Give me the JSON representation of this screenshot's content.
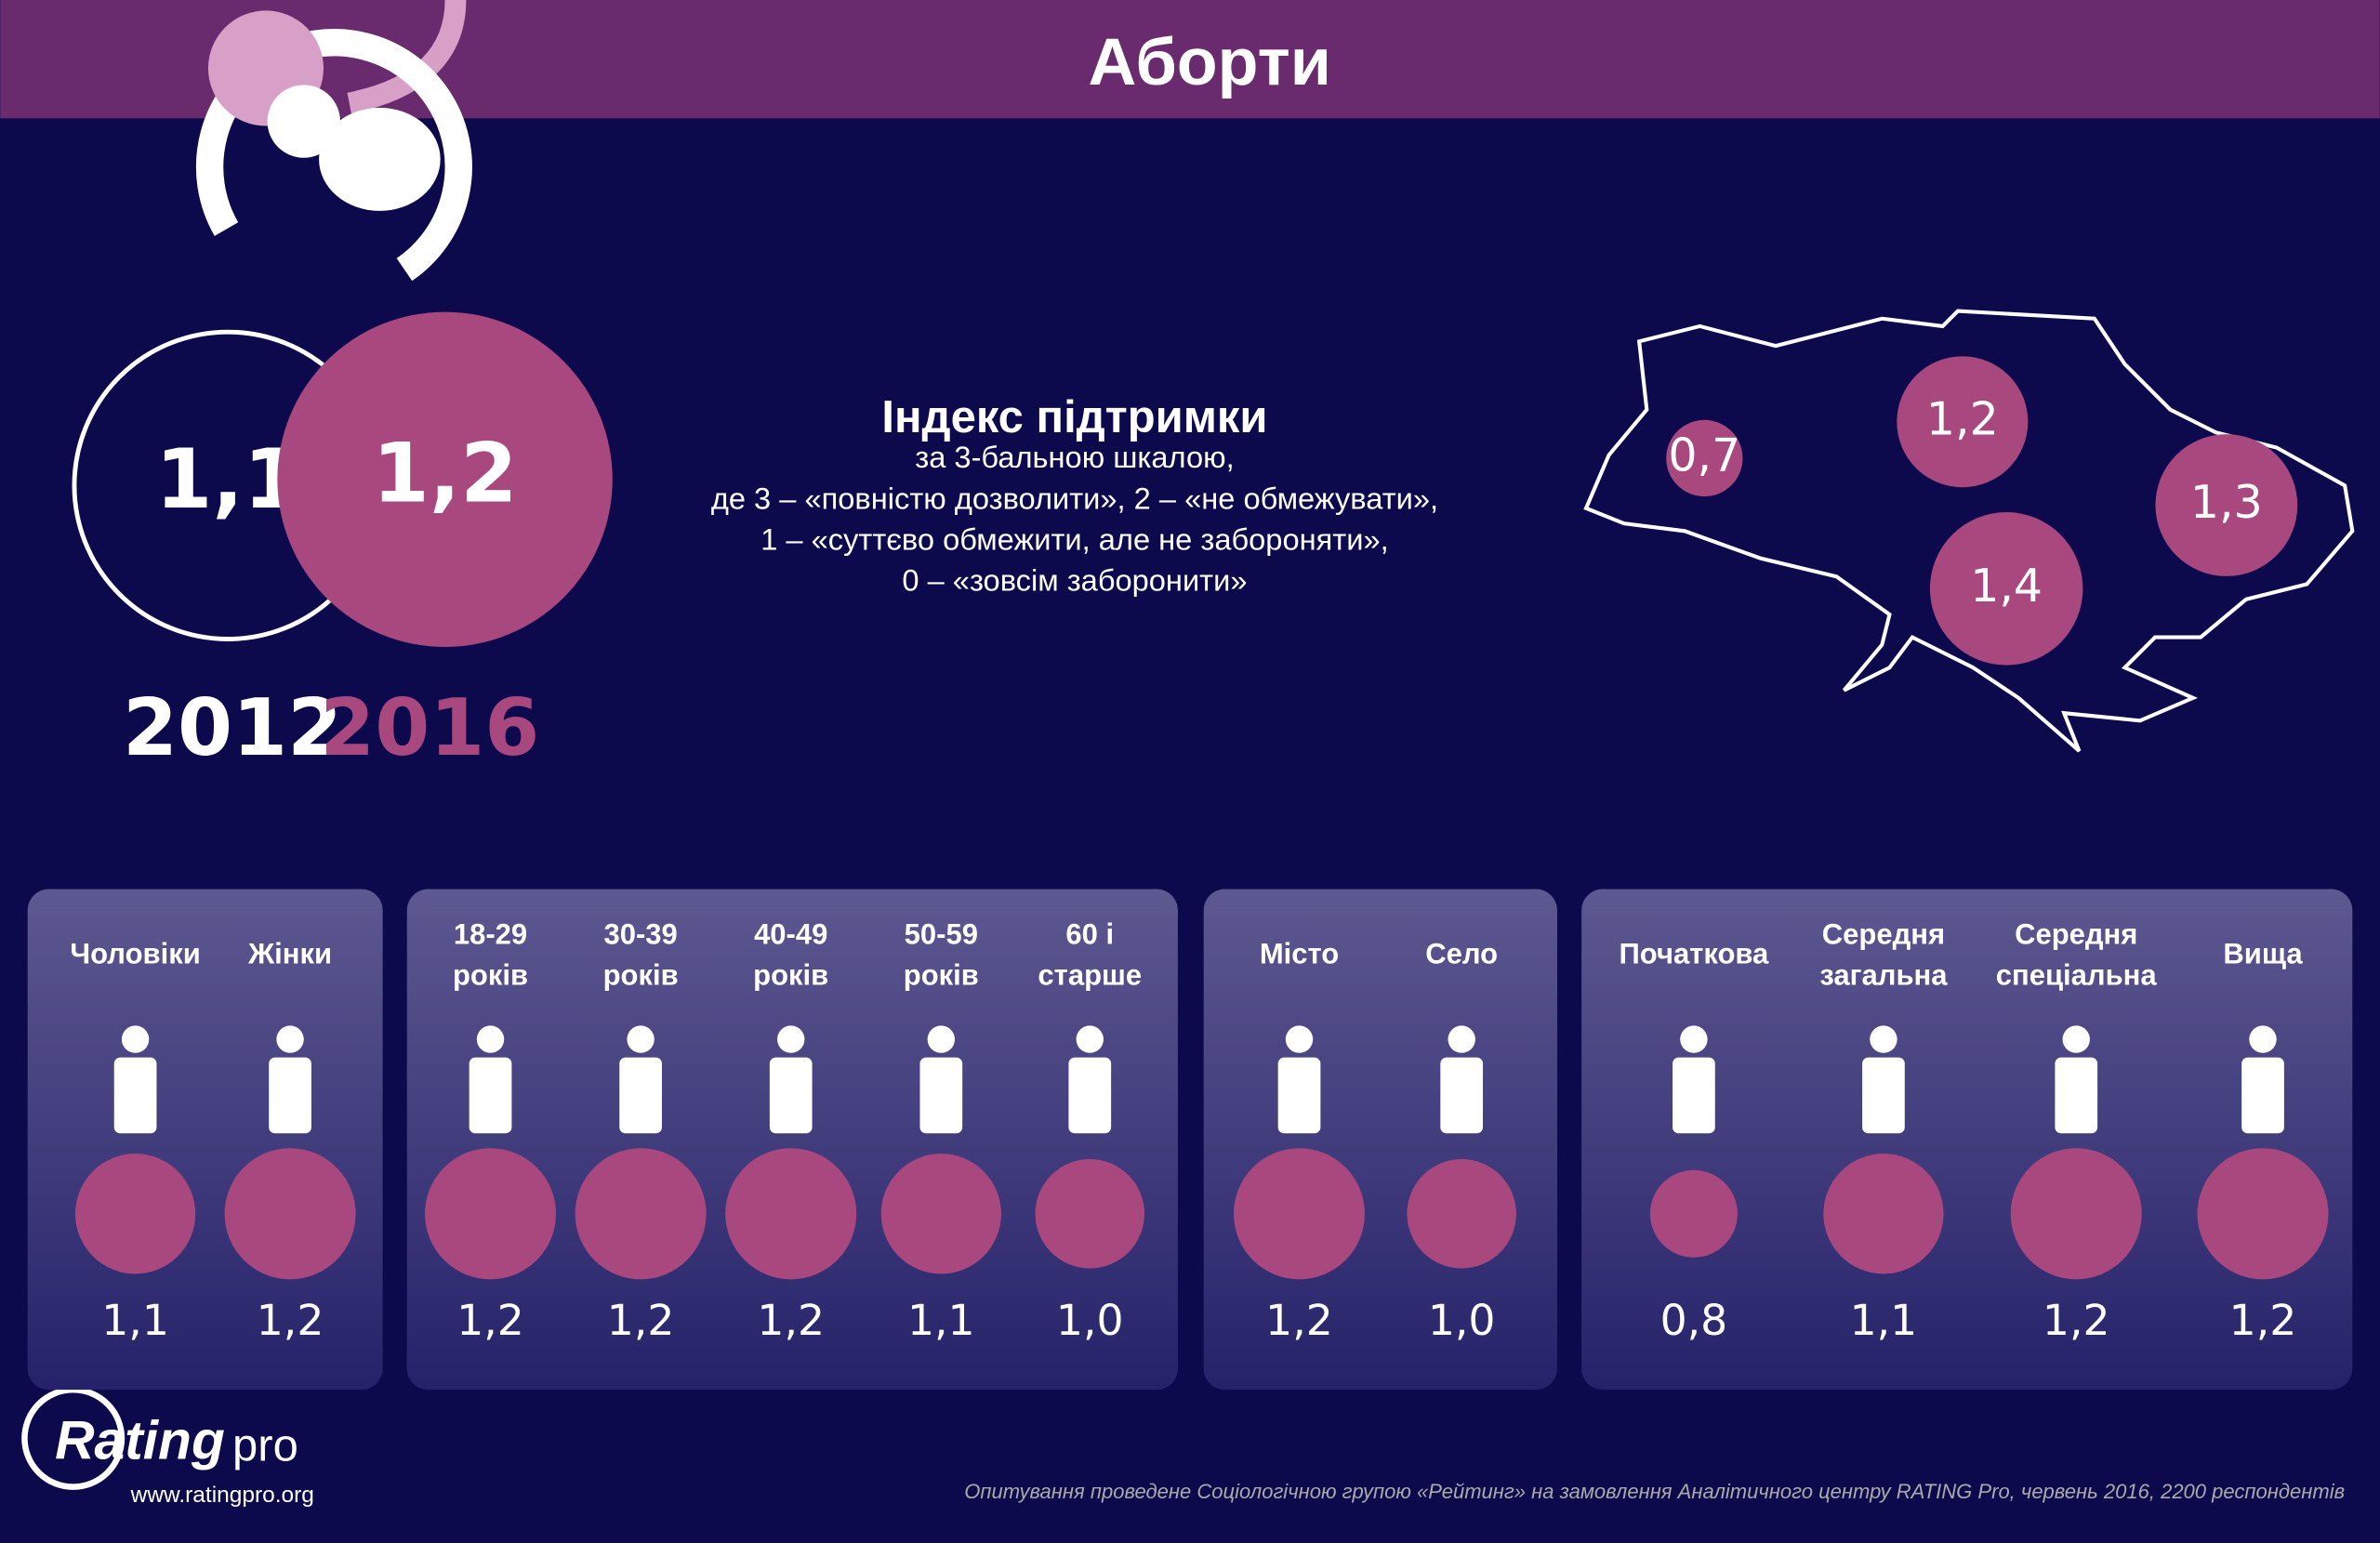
{
  "title": "Аборти",
  "overall": [
    {
      "year": "2012",
      "value": 1.1,
      "value_label": "1,1"
    },
    {
      "year": "2016",
      "value": 1.2,
      "value_label": "1,2"
    }
  ],
  "index": {
    "title": "Індекс підтримки",
    "lines": [
      "за 3-бальною шкалою,",
      "де 3 – «повністю дозволити», 2 – «не обмежувати»,",
      "1 – «суттєво обмежити, але не забороняти»,",
      "0 – «зовсім заборонити»"
    ]
  },
  "regions": [
    {
      "value": 0.7,
      "value_label": "0,7"
    },
    {
      "value": 1.2,
      "value_label": "1,2"
    },
    {
      "value": 1.3,
      "value_label": "1,3"
    },
    {
      "value": 1.4,
      "value_label": "1,4"
    }
  ],
  "groups": [
    [
      {
        "label": [
          "Чоловіки"
        ],
        "value": 1.1,
        "value_label": "1,1"
      },
      {
        "label": [
          "Жінки"
        ],
        "value": 1.2,
        "value_label": "1,2"
      }
    ],
    [
      {
        "label": [
          "18-29",
          "років"
        ],
        "value": 1.2,
        "value_label": "1,2"
      },
      {
        "label": [
          "30-39",
          "років"
        ],
        "value": 1.2,
        "value_label": "1,2"
      },
      {
        "label": [
          "40-49",
          "років"
        ],
        "value": 1.2,
        "value_label": "1,2"
      },
      {
        "label": [
          "50-59",
          "років"
        ],
        "value": 1.1,
        "value_label": "1,1"
      },
      {
        "label": [
          "60 і",
          "старше"
        ],
        "value": 1.0,
        "value_label": "1,0"
      }
    ],
    [
      {
        "label": [
          "Місто"
        ],
        "value": 1.2,
        "value_label": "1,2"
      },
      {
        "label": [
          "Село"
        ],
        "value": 1.0,
        "value_label": "1,0"
      }
    ],
    [
      {
        "label": [
          "Початкова"
        ],
        "value": 0.8,
        "value_label": "0,8"
      },
      {
        "label": [
          "Середня",
          "загальна"
        ],
        "value": 1.1,
        "value_label": "1,1"
      },
      {
        "label": [
          "Середня",
          "спеціальна"
        ],
        "value": 1.2,
        "value_label": "1,2"
      },
      {
        "label": [
          "Вища"
        ],
        "value": 1.2,
        "value_label": "1,2"
      }
    ]
  ],
  "logo": {
    "rating": "Rating",
    "pro": "pro",
    "url": "www.ratingpro.org"
  },
  "footer": "Опитування проведене Соціологічною групою «Рейтинг» на замовлення Аналітичного центру RATING Pro, червень 2016, 2200 респондентів"
}
